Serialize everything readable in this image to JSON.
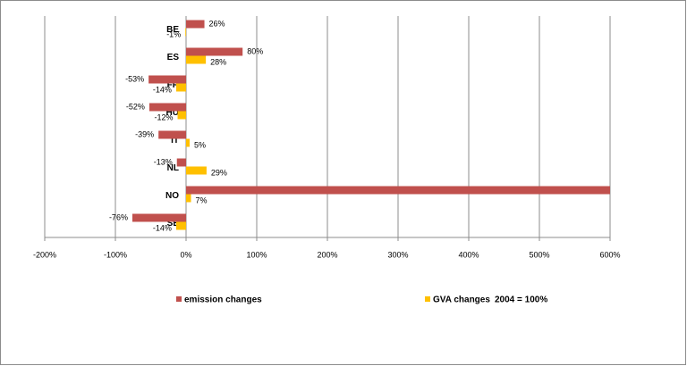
{
  "chart_data": {
    "type": "hbar",
    "categories": [
      "BE",
      "ES",
      "FR",
      "HU",
      "IT",
      "NL",
      "NO",
      "SE"
    ],
    "series": [
      {
        "name": "emission changes",
        "color": "#c0504d",
        "values": [
          26,
          80,
          -53,
          -52,
          -39,
          -13,
          600,
          -76
        ],
        "value_labels": [
          "26%",
          "80%",
          "-53%",
          "-52%",
          "-39%",
          "-13%",
          null,
          "-76%"
        ]
      },
      {
        "name": "GVA changes",
        "color": "#ffc000",
        "values": [
          -1,
          28,
          -14,
          -12,
          5,
          29,
          7,
          -14
        ],
        "value_labels": [
          "-1%",
          "28%",
          "-14%",
          "-12%",
          "5%",
          "29%",
          "7%",
          "-14%"
        ]
      }
    ],
    "annotation": "2004 = 100%",
    "xlim": [
      -200,
      600
    ],
    "xticks": [
      {
        "value": -200,
        "label": "-200%"
      },
      {
        "value": -100,
        "label": "-100%"
      },
      {
        "value": 0,
        "label": "0%"
      },
      {
        "value": 100,
        "label": "100%"
      },
      {
        "value": 200,
        "label": "200%"
      },
      {
        "value": 300,
        "label": "300%"
      },
      {
        "value": 400,
        "label": "400%"
      },
      {
        "value": 500,
        "label": "500%"
      },
      {
        "value": 600,
        "label": "600%"
      }
    ],
    "grid": true
  }
}
